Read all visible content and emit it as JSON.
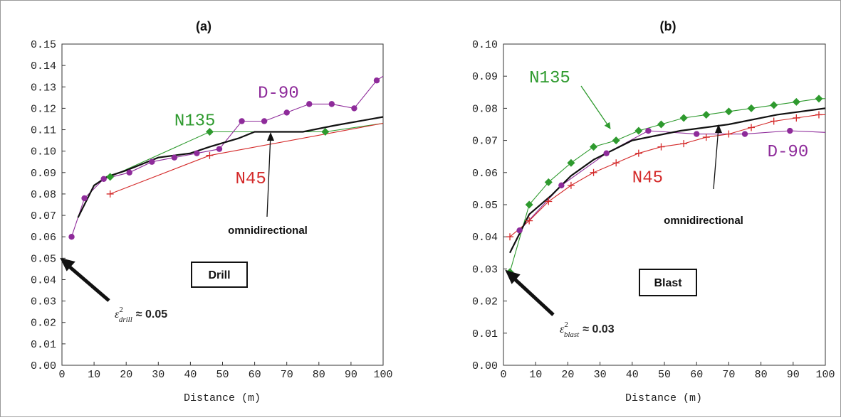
{
  "chart_data": [
    {
      "type": "line",
      "title": "(a)",
      "xlabel": "Distance (m)",
      "ylabel": "",
      "xlim": [
        0,
        100
      ],
      "ylim": [
        0,
        0.15
      ],
      "xticks": [
        "0",
        "10",
        "20",
        "30",
        "40",
        "50",
        "60",
        "70",
        "80",
        "90",
        "100"
      ],
      "yticks": [
        "0.00",
        "0.01",
        "0.02",
        "0.03",
        "0.04",
        "0.05",
        "0.06",
        "0.07",
        "0.08",
        "0.09",
        "0.10",
        "0.11",
        "0.12",
        "0.13",
        "0.14",
        "0.15"
      ],
      "grid": false,
      "series": [
        {
          "name": "N135",
          "color": "#2e9a2e",
          "marker": "diamond",
          "points": [
            [
              15,
              0.088
            ],
            [
              46,
              0.109
            ],
            [
              82,
              0.109
            ]
          ],
          "line": [
            [
              15,
              0.088
            ],
            [
              46,
              0.109
            ],
            [
              82,
              0.109
            ],
            [
              100,
              0.113
            ]
          ]
        },
        {
          "name": "D-90",
          "color": "#8e2b9a",
          "marker": "circle",
          "points": [
            [
              3,
              0.06
            ],
            [
              7,
              0.078
            ],
            [
              13,
              0.087
            ],
            [
              21,
              0.09
            ],
            [
              28,
              0.095
            ],
            [
              35,
              0.097
            ],
            [
              42,
              0.099
            ],
            [
              49,
              0.101
            ],
            [
              56,
              0.114
            ],
            [
              63,
              0.114
            ],
            [
              70,
              0.118
            ],
            [
              77,
              0.122
            ],
            [
              84,
              0.122
            ],
            [
              91,
              0.12
            ],
            [
              98,
              0.133
            ]
          ],
          "line": [
            [
              3,
              0.06
            ],
            [
              7,
              0.078
            ],
            [
              13,
              0.087
            ],
            [
              21,
              0.09
            ],
            [
              28,
              0.095
            ],
            [
              35,
              0.097
            ],
            [
              42,
              0.099
            ],
            [
              49,
              0.101
            ],
            [
              56,
              0.114
            ],
            [
              63,
              0.114
            ],
            [
              70,
              0.118
            ],
            [
              77,
              0.122
            ],
            [
              84,
              0.122
            ],
            [
              91,
              0.12
            ],
            [
              98,
              0.133
            ],
            [
              100,
              0.135
            ]
          ]
        },
        {
          "name": "N45",
          "color": "#d42a2a",
          "marker": "plus",
          "points": [
            [
              15,
              0.08
            ],
            [
              46,
              0.098
            ]
          ],
          "line": [
            [
              15,
              0.08
            ],
            [
              46,
              0.098
            ],
            [
              100,
              0.113
            ]
          ]
        },
        {
          "name": "omnidirectional",
          "color": "#111111",
          "marker": "none",
          "line": [
            [
              5,
              0.069
            ],
            [
              10,
              0.084
            ],
            [
              14,
              0.088
            ],
            [
              20,
              0.091
            ],
            [
              30,
              0.097
            ],
            [
              40,
              0.099
            ],
            [
              46,
              0.102
            ],
            [
              55,
              0.106
            ],
            [
              60,
              0.109
            ],
            [
              75,
              0.109
            ],
            [
              85,
              0.112
            ],
            [
              100,
              0.116
            ]
          ]
        }
      ],
      "labels": [
        {
          "text": "N135",
          "series": "N135",
          "x": 35,
          "y": 0.112
        },
        {
          "text": "D-90",
          "series": "D-90",
          "x": 61,
          "y": 0.125
        },
        {
          "text": "N45",
          "series": "N45",
          "x": 54,
          "y": 0.085
        }
      ],
      "annotations": {
        "omni": "omnidirectional",
        "box": "Drill",
        "nugget": "≈ 0.05",
        "nugget_base": "ε",
        "nugget_sup": "2",
        "nugget_sub": "drill"
      }
    },
    {
      "type": "line",
      "title": "(b)",
      "xlabel": "Distance (m)",
      "ylabel": "",
      "xlim": [
        0,
        100
      ],
      "ylim": [
        0,
        0.1
      ],
      "xticks": [
        "0",
        "10",
        "20",
        "30",
        "40",
        "50",
        "60",
        "70",
        "80",
        "90",
        "100"
      ],
      "yticks": [
        "0.00",
        "0.01",
        "0.02",
        "0.03",
        "0.04",
        "0.05",
        "0.06",
        "0.07",
        "0.08",
        "0.09",
        "0.10"
      ],
      "grid": false,
      "series": [
        {
          "name": "N135",
          "color": "#2e9a2e",
          "marker": "diamond",
          "points": [
            [
              2,
              0.029
            ],
            [
              8,
              0.05
            ],
            [
              14,
              0.057
            ],
            [
              21,
              0.063
            ],
            [
              28,
              0.068
            ],
            [
              35,
              0.07
            ],
            [
              42,
              0.073
            ],
            [
              49,
              0.075
            ],
            [
              56,
              0.077
            ],
            [
              63,
              0.078
            ],
            [
              70,
              0.079
            ],
            [
              77,
              0.08
            ],
            [
              84,
              0.081
            ],
            [
              91,
              0.082
            ],
            [
              98,
              0.083
            ]
          ],
          "line": [
            [
              2,
              0.029
            ],
            [
              8,
              0.05
            ],
            [
              14,
              0.057
            ],
            [
              21,
              0.063
            ],
            [
              28,
              0.068
            ],
            [
              35,
              0.07
            ],
            [
              42,
              0.073
            ],
            [
              49,
              0.075
            ],
            [
              56,
              0.077
            ],
            [
              63,
              0.078
            ],
            [
              70,
              0.079
            ],
            [
              77,
              0.08
            ],
            [
              84,
              0.081
            ],
            [
              91,
              0.082
            ],
            [
              98,
              0.083
            ],
            [
              100,
              0.083
            ]
          ]
        },
        {
          "name": "D-90",
          "color": "#8e2b9a",
          "marker": "circle",
          "points": [
            [
              5,
              0.042
            ],
            [
              18,
              0.056
            ],
            [
              32,
              0.066
            ],
            [
              45,
              0.073
            ],
            [
              60,
              0.072
            ],
            [
              75,
              0.072
            ],
            [
              89,
              0.073
            ]
          ],
          "line": [
            [
              5,
              0.042
            ],
            [
              18,
              0.056
            ],
            [
              32,
              0.066
            ],
            [
              45,
              0.073
            ],
            [
              60,
              0.072
            ],
            [
              75,
              0.072
            ],
            [
              89,
              0.073
            ],
            [
              100,
              0.0725
            ]
          ]
        },
        {
          "name": "N45",
          "color": "#d42a2a",
          "marker": "plus",
          "points": [
            [
              2,
              0.04
            ],
            [
              8,
              0.045
            ],
            [
              14,
              0.051
            ],
            [
              21,
              0.056
            ],
            [
              28,
              0.06
            ],
            [
              35,
              0.063
            ],
            [
              42,
              0.066
            ],
            [
              49,
              0.068
            ],
            [
              56,
              0.069
            ],
            [
              63,
              0.071
            ],
            [
              70,
              0.072
            ],
            [
              77,
              0.074
            ],
            [
              84,
              0.076
            ],
            [
              91,
              0.077
            ],
            [
              98,
              0.078
            ]
          ],
          "line": [
            [
              2,
              0.04
            ],
            [
              8,
              0.045
            ],
            [
              14,
              0.051
            ],
            [
              21,
              0.056
            ],
            [
              28,
              0.06
            ],
            [
              35,
              0.063
            ],
            [
              42,
              0.066
            ],
            [
              49,
              0.068
            ],
            [
              56,
              0.069
            ],
            [
              63,
              0.071
            ],
            [
              70,
              0.072
            ],
            [
              77,
              0.074
            ],
            [
              84,
              0.076
            ],
            [
              91,
              0.077
            ],
            [
              98,
              0.078
            ],
            [
              100,
              0.078
            ]
          ]
        },
        {
          "name": "omnidirectional",
          "color": "#111111",
          "marker": "none",
          "line": [
            [
              2,
              0.035
            ],
            [
              8,
              0.047
            ],
            [
              15,
              0.053
            ],
            [
              21,
              0.059
            ],
            [
              28,
              0.064
            ],
            [
              40,
              0.07
            ],
            [
              55,
              0.073
            ],
            [
              70,
              0.075
            ],
            [
              85,
              0.078
            ],
            [
              100,
              0.08
            ]
          ]
        }
      ],
      "labels": [
        {
          "text": "N135",
          "series": "N135",
          "x": 8,
          "y": 0.088
        },
        {
          "text": "D-90",
          "series": "D-90",
          "x": 82,
          "y": 0.065
        },
        {
          "text": "N45",
          "series": "N45",
          "x": 40,
          "y": 0.057
        }
      ],
      "annotations": {
        "omni": "omnidirectional",
        "box": "Blast",
        "nugget": "≈ 0.03",
        "nugget_base": "ε",
        "nugget_sup": "2",
        "nugget_sub": "blast"
      }
    }
  ]
}
